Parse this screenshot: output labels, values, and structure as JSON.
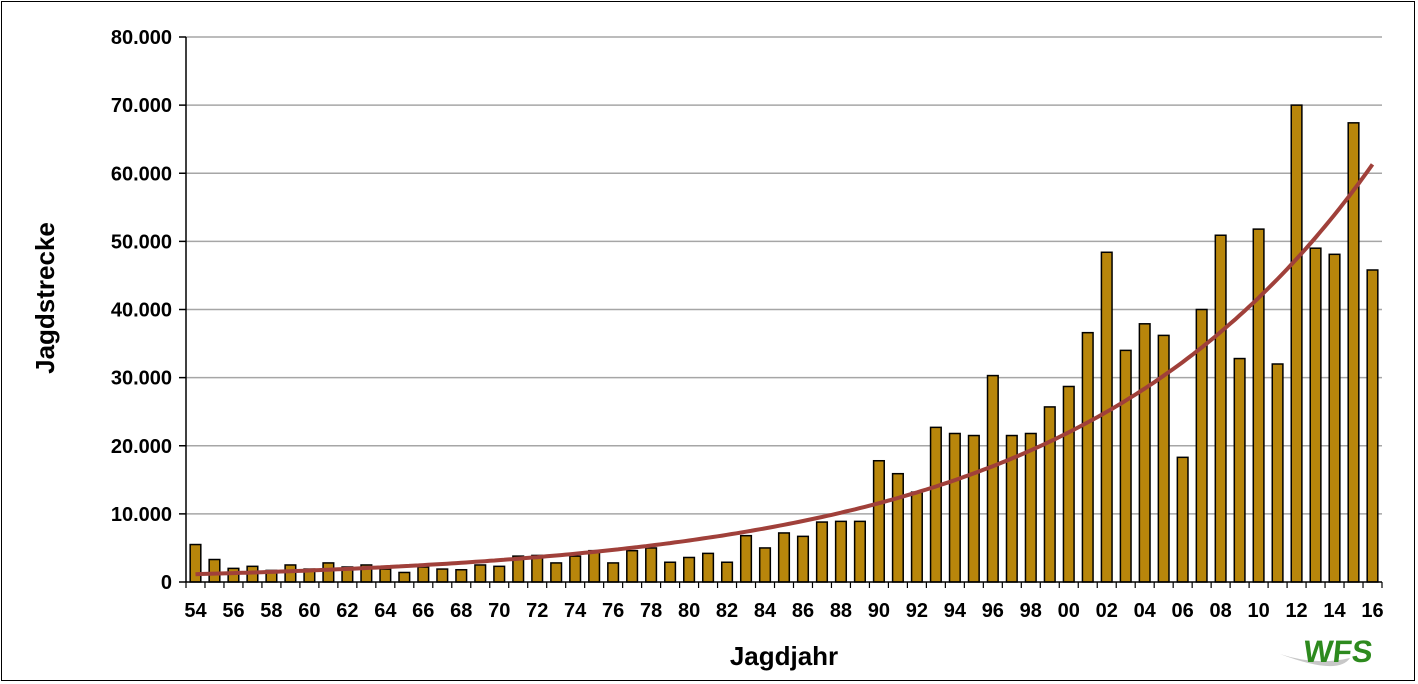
{
  "chart_data": {
    "type": "bar",
    "xlabel": "Jagdjahr",
    "ylabel": "Jagdstrecke",
    "ylim": [
      0,
      80000
    ],
    "ytick_values": [
      0,
      10000,
      20000,
      30000,
      40000,
      50000,
      60000,
      70000,
      80000
    ],
    "ytick_labels": [
      "0",
      "10.000",
      "20.000",
      "30.000",
      "40.000",
      "50.000",
      "60.000",
      "70.000",
      "80.000"
    ],
    "categories": [
      "54",
      "55",
      "56",
      "57",
      "58",
      "59",
      "60",
      "61",
      "62",
      "63",
      "64",
      "65",
      "66",
      "67",
      "68",
      "69",
      "70",
      "71",
      "72",
      "73",
      "74",
      "75",
      "76",
      "77",
      "78",
      "79",
      "80",
      "81",
      "82",
      "83",
      "84",
      "85",
      "86",
      "87",
      "88",
      "89",
      "90",
      "91",
      "92",
      "93",
      "94",
      "95",
      "96",
      "97",
      "98",
      "99",
      "00",
      "01",
      "02",
      "03",
      "04",
      "05",
      "06",
      "07",
      "08",
      "09",
      "10",
      "11",
      "12",
      "13",
      "14",
      "15",
      "16"
    ],
    "xtick_labels": [
      "54",
      "56",
      "58",
      "60",
      "62",
      "64",
      "66",
      "68",
      "70",
      "72",
      "74",
      "76",
      "78",
      "80",
      "82",
      "84",
      "86",
      "88",
      "90",
      "92",
      "94",
      "96",
      "98",
      "00",
      "02",
      "04",
      "06",
      "08",
      "10",
      "12",
      "14",
      "16"
    ],
    "series": [
      {
        "values": [
          5500,
          3300,
          2000,
          2300,
          1700,
          2500,
          1900,
          2800,
          2200,
          2500,
          1900,
          1400,
          2200,
          1900,
          1800,
          2500,
          2300,
          3800,
          3900,
          2800,
          3800,
          4600,
          2800,
          4600,
          5000,
          2900,
          3600,
          4200,
          2900,
          6800,
          5000,
          7200,
          6700,
          8800,
          8900,
          8900,
          17800,
          15900,
          13200,
          22700,
          21800,
          21500,
          30300,
          21500,
          21800,
          25700,
          28700,
          36600,
          48400,
          34000,
          37900,
          36200,
          18300,
          40000,
          50900,
          32800,
          51800,
          32000,
          70000,
          49000,
          48100,
          67400,
          45800
        ]
      }
    ],
    "trendline": {
      "type": "exponential",
      "start_value": 1150,
      "end_value": 61300
    },
    "grid": true,
    "legend": "none",
    "colors": {
      "bar_fill": "#b8860b",
      "bar_stroke": "#000000",
      "trendline": "#a0403a",
      "gridline": "#a6a6a6",
      "logo": "#2d8a1e"
    },
    "logo_text": "WFS"
  }
}
